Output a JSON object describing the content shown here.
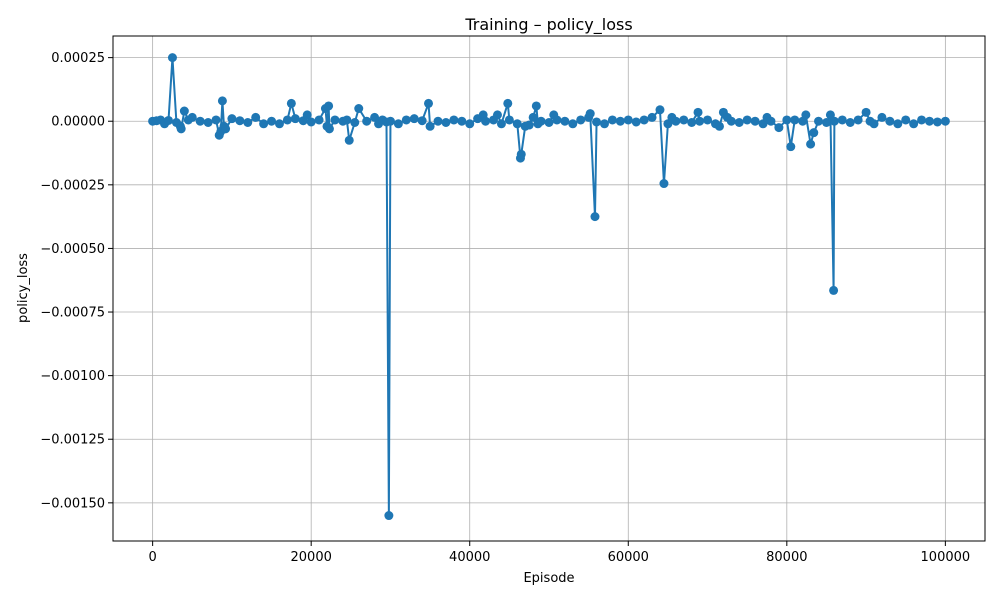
{
  "chart_data": {
    "type": "line",
    "title": "Training – policy_loss",
    "xlabel": "Episode",
    "ylabel": "policy_loss",
    "xlim": [
      -5000,
      105000
    ],
    "ylim": [
      -0.00165,
      0.000335
    ],
    "xticks": [
      0,
      20000,
      40000,
      60000,
      80000,
      100000
    ],
    "xtick_labels": [
      "0",
      "20000",
      "40000",
      "60000",
      "80000",
      "100000"
    ],
    "yticks": [
      0.00025,
      0.0,
      -0.00025,
      -0.0005,
      -0.00075,
      -0.001,
      -0.00125,
      -0.0015
    ],
    "ytick_labels": [
      "0.00025",
      "0.00000",
      "−0.00025",
      "−0.00050",
      "−0.00075",
      "−0.00100",
      "−0.00125",
      "−0.00150"
    ],
    "grid": true,
    "color": "#1f77b4",
    "marker": "circle",
    "series": [
      {
        "values": [
          [
            0,
            0.0
          ],
          [
            500,
            2e-06
          ],
          [
            1000,
            5e-06
          ],
          [
            1500,
            -1e-05
          ],
          [
            2000,
            3e-06
          ],
          [
            2500,
            0.00025
          ],
          [
            3000,
            -5e-06
          ],
          [
            3500,
            -2e-05
          ],
          [
            3600,
            -3e-05
          ],
          [
            4000,
            4e-05
          ],
          [
            4500,
            5e-06
          ],
          [
            5000,
            1.5e-05
          ],
          [
            6000,
            0.0
          ],
          [
            7000,
            -5e-06
          ],
          [
            8000,
            5e-06
          ],
          [
            8400,
            -5.5e-05
          ],
          [
            8600,
            -4e-05
          ],
          [
            8800,
            8e-05
          ],
          [
            9000,
            -2e-05
          ],
          [
            9200,
            -3e-05
          ],
          [
            10000,
            1e-05
          ],
          [
            11000,
            2e-06
          ],
          [
            12000,
            -5e-06
          ],
          [
            13000,
            1.5e-05
          ],
          [
            14000,
            -1e-05
          ],
          [
            15000,
            0.0
          ],
          [
            16000,
            -1e-05
          ],
          [
            17000,
            5e-06
          ],
          [
            17500,
            7e-05
          ],
          [
            18000,
            1e-05
          ],
          [
            19000,
            2e-06
          ],
          [
            19500,
            2.5e-05
          ],
          [
            20000,
            -3e-06
          ],
          [
            21000,
            5e-06
          ],
          [
            21800,
            5e-05
          ],
          [
            22000,
            -2e-05
          ],
          [
            22200,
            6e-05
          ],
          [
            22300,
            -3e-05
          ],
          [
            23000,
            5e-06
          ],
          [
            24000,
            0.0
          ],
          [
            24500,
            5e-06
          ],
          [
            24800,
            -7.5e-05
          ],
          [
            25500,
            -5e-06
          ],
          [
            26000,
            5e-05
          ],
          [
            27000,
            0.0
          ],
          [
            28000,
            1.5e-05
          ],
          [
            28500,
            -1e-05
          ],
          [
            29000,
            5e-06
          ],
          [
            29500,
            -3e-06
          ],
          [
            29800,
            -0.00155
          ],
          [
            30000,
            0.0
          ],
          [
            31000,
            -1e-05
          ],
          [
            32000,
            5e-06
          ],
          [
            33000,
            1e-05
          ],
          [
            34000,
            2e-06
          ],
          [
            34800,
            7e-05
          ],
          [
            35000,
            -2e-05
          ],
          [
            36000,
            0.0
          ],
          [
            37000,
            -5e-06
          ],
          [
            38000,
            5e-06
          ],
          [
            39000,
            0.0
          ],
          [
            40000,
            -1e-05
          ],
          [
            41000,
            1e-05
          ],
          [
            41700,
            2.5e-05
          ],
          [
            42000,
            0.0
          ],
          [
            43000,
            5e-06
          ],
          [
            43500,
            2.5e-05
          ],
          [
            44000,
            -1e-05
          ],
          [
            44800,
            7e-05
          ],
          [
            45000,
            5e-06
          ],
          [
            46000,
            -1e-05
          ],
          [
            46400,
            -0.000145
          ],
          [
            46500,
            -0.00013
          ],
          [
            47000,
            -2e-05
          ],
          [
            47500,
            -1.5e-05
          ],
          [
            48000,
            1.5e-05
          ],
          [
            48400,
            6e-05
          ],
          [
            48600,
            -1e-05
          ],
          [
            49000,
            0.0
          ],
          [
            50000,
            -5e-06
          ],
          [
            50600,
            2.5e-05
          ],
          [
            51000,
            5e-06
          ],
          [
            52000,
            0.0
          ],
          [
            53000,
            -1e-05
          ],
          [
            54000,
            5e-06
          ],
          [
            55000,
            1.5e-05
          ],
          [
            55200,
            3e-05
          ],
          [
            55800,
            -0.000375
          ],
          [
            56000,
            -3e-06
          ],
          [
            57000,
            -1e-05
          ],
          [
            58000,
            5e-06
          ],
          [
            59000,
            0.0
          ],
          [
            60000,
            5e-06
          ],
          [
            61000,
            -3e-06
          ],
          [
            62000,
            5e-06
          ],
          [
            63000,
            1.5e-05
          ],
          [
            64000,
            4.5e-05
          ],
          [
            64500,
            -0.000245
          ],
          [
            65000,
            -1e-05
          ],
          [
            65500,
            1.5e-05
          ],
          [
            66000,
            0.0
          ],
          [
            67000,
            5e-06
          ],
          [
            68000,
            -5e-06
          ],
          [
            68800,
            3.5e-05
          ],
          [
            69000,
            0.0
          ],
          [
            70000,
            5e-06
          ],
          [
            71000,
            -1e-05
          ],
          [
            71500,
            -2e-05
          ],
          [
            72000,
            3.5e-05
          ],
          [
            72500,
            1.5e-05
          ],
          [
            73000,
            0.0
          ],
          [
            74000,
            -5e-06
          ],
          [
            75000,
            5e-06
          ],
          [
            76000,
            0.0
          ],
          [
            77000,
            -1e-05
          ],
          [
            77500,
            1.5e-05
          ],
          [
            78000,
            0.0
          ],
          [
            79000,
            -2.5e-05
          ],
          [
            80000,
            5e-06
          ],
          [
            80500,
            -0.0001
          ],
          [
            81000,
            5e-06
          ],
          [
            82000,
            0.0
          ],
          [
            82400,
            2.5e-05
          ],
          [
            83000,
            -9e-05
          ],
          [
            83400,
            -4.5e-05
          ],
          [
            84000,
            0.0
          ],
          [
            85000,
            -5e-06
          ],
          [
            85500,
            2.5e-05
          ],
          [
            85900,
            -0.000665
          ],
          [
            86000,
            0.0
          ],
          [
            87000,
            5e-06
          ],
          [
            88000,
            -5e-06
          ],
          [
            89000,
            5e-06
          ],
          [
            90000,
            3.5e-05
          ],
          [
            90500,
            0.0
          ],
          [
            91000,
            -1e-05
          ],
          [
            92000,
            1.5e-05
          ],
          [
            93000,
            0.0
          ],
          [
            94000,
            -1e-05
          ],
          [
            95000,
            5e-06
          ],
          [
            96000,
            -1e-05
          ],
          [
            97000,
            5e-06
          ],
          [
            98000,
            0.0
          ],
          [
            99000,
            -3e-06
          ],
          [
            100000,
            0.0
          ]
        ]
      }
    ]
  }
}
